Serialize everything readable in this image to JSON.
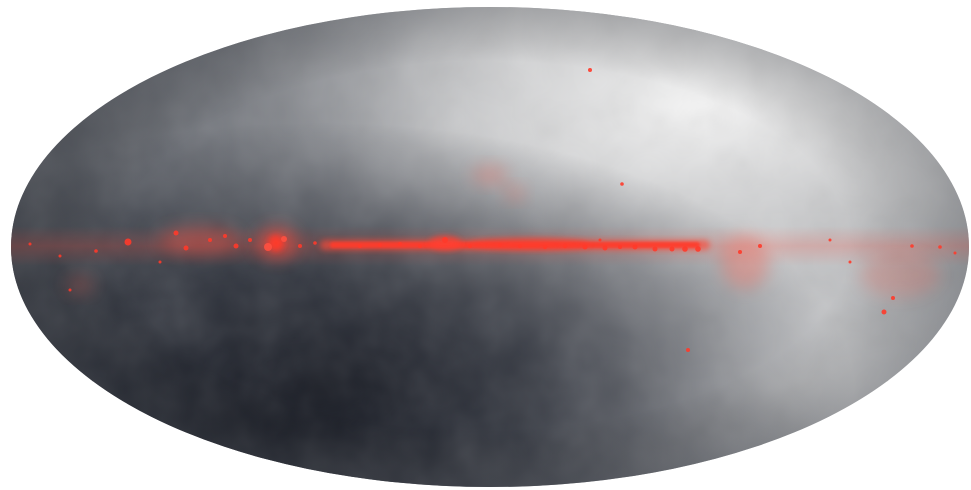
{
  "image": {
    "subject": "all-sky-map",
    "colors": {
      "background": "#ffffff",
      "sky_dark": "#141720",
      "sky_mid": "#6f737b",
      "sky_light": "#f2f2f2",
      "emission_red": "#ff3a2a",
      "emission_glow": "#ff5a4a"
    }
  }
}
